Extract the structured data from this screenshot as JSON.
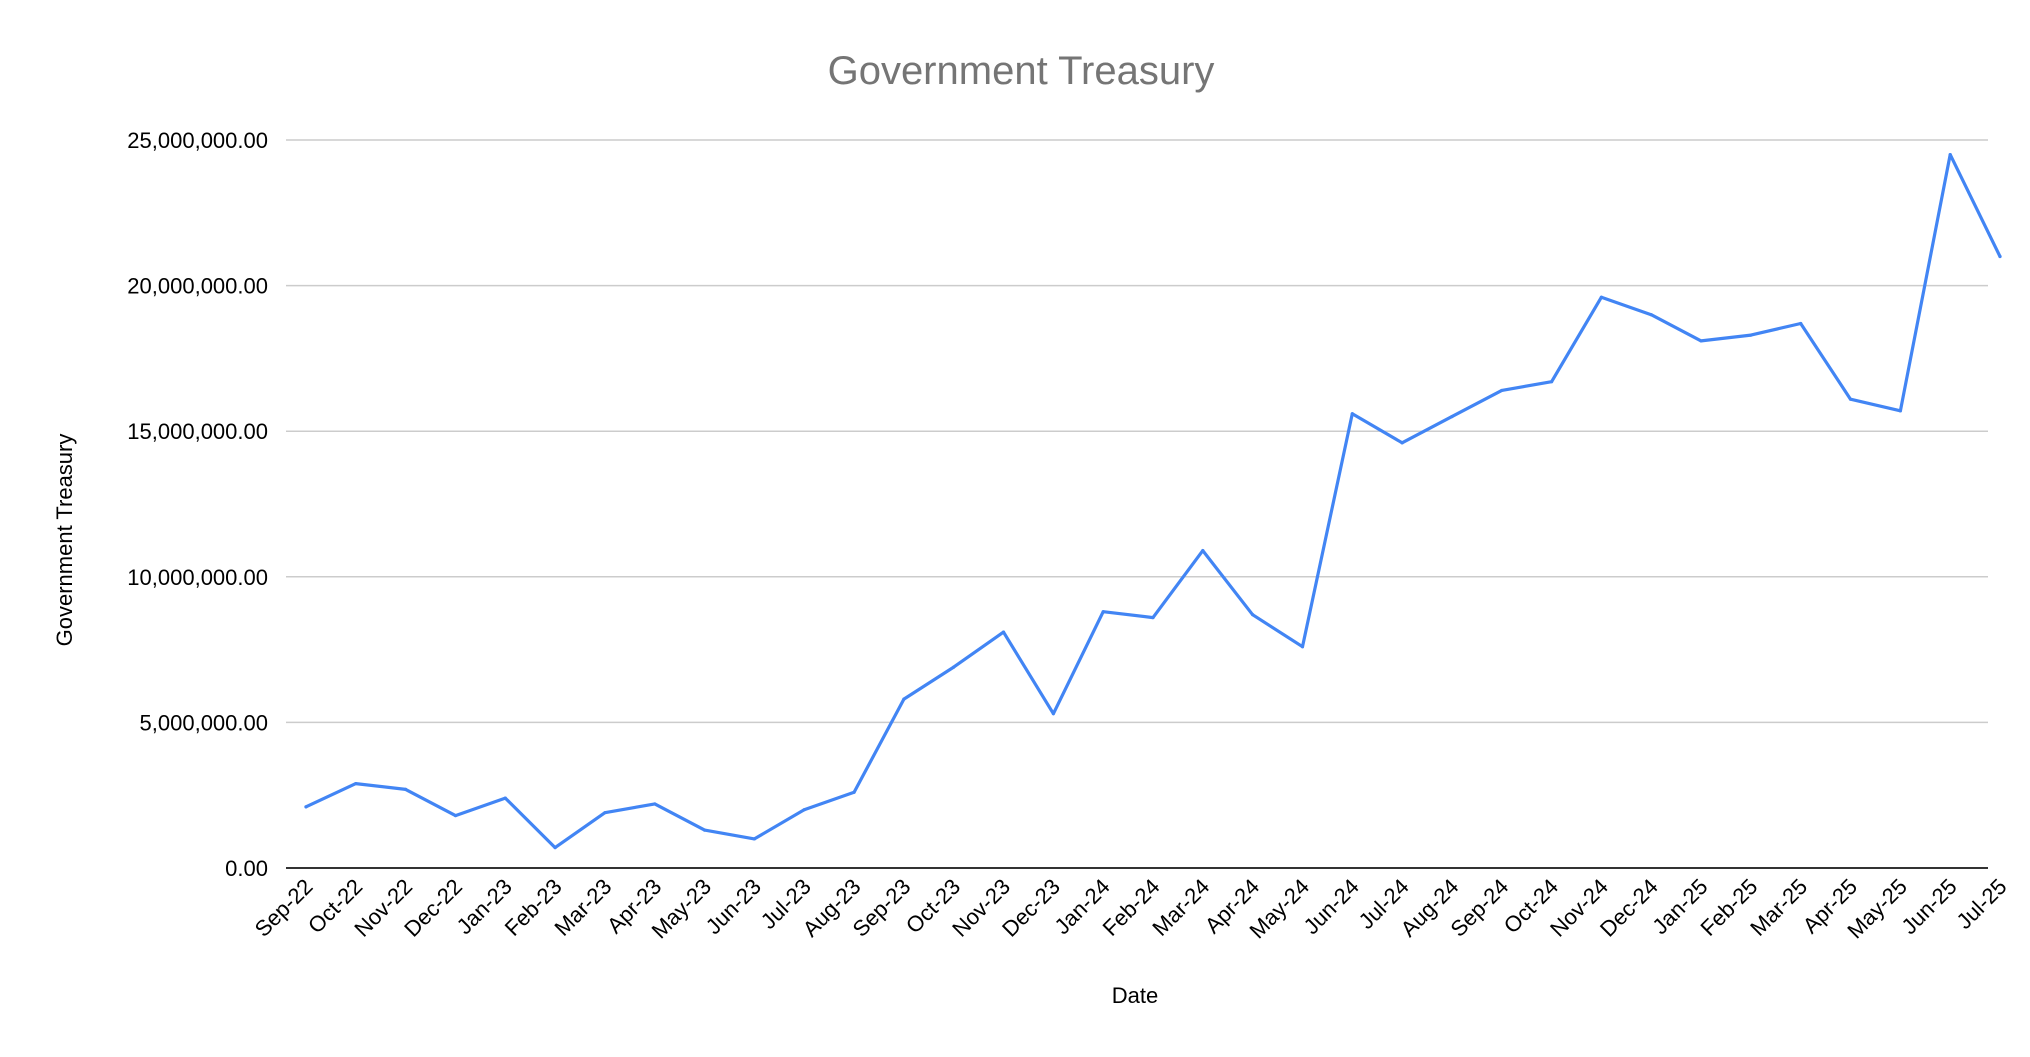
{
  "chart_data": {
    "type": "line",
    "title": "Government Treasury",
    "xlabel": "Date",
    "ylabel": "Government Treasury",
    "ylim": [
      0,
      25000000
    ],
    "y_ticks": [
      {
        "value": 0,
        "label": "0.00"
      },
      {
        "value": 5000000,
        "label": "5,000,000.00"
      },
      {
        "value": 10000000,
        "label": "10,000,000.00"
      },
      {
        "value": 15000000,
        "label": "15,000,000.00"
      },
      {
        "value": 20000000,
        "label": "20,000,000.00"
      },
      {
        "value": 25000000,
        "label": "25,000,000.00"
      }
    ],
    "grid": true,
    "legend": "none",
    "categories": [
      "Sep-22",
      "Oct-22",
      "Nov-22",
      "Dec-22",
      "Jan-23",
      "Feb-23",
      "Mar-23",
      "Apr-23",
      "May-23",
      "Jun-23",
      "Jul-23",
      "Aug-23",
      "Sep-23",
      "Oct-23",
      "Nov-23",
      "Dec-23",
      "Jan-24",
      "Feb-24",
      "Mar-24",
      "Apr-24",
      "May-24",
      "Jun-24",
      "Jul-24",
      "Aug-24",
      "Sep-24",
      "Oct-24",
      "Nov-24",
      "Dec-24",
      "Jan-25",
      "Feb-25",
      "Mar-25",
      "Apr-25",
      "May-25",
      "Jun-25",
      "Jul-25"
    ],
    "series": [
      {
        "color": "#4285f4",
        "values": [
          2100000,
          2900000,
          2700000,
          1800000,
          2400000,
          700000,
          1900000,
          2200000,
          1300000,
          1000000,
          2000000,
          2600000,
          5800000,
          6900000,
          8100000,
          5300000,
          8800000,
          8600000,
          10900000,
          8700000,
          7600000,
          15600000,
          14600000,
          15500000,
          16400000,
          16700000,
          19600000,
          19000000,
          18100000,
          18300000,
          18700000,
          16100000,
          15700000,
          24500000,
          21000000
        ]
      }
    ]
  }
}
